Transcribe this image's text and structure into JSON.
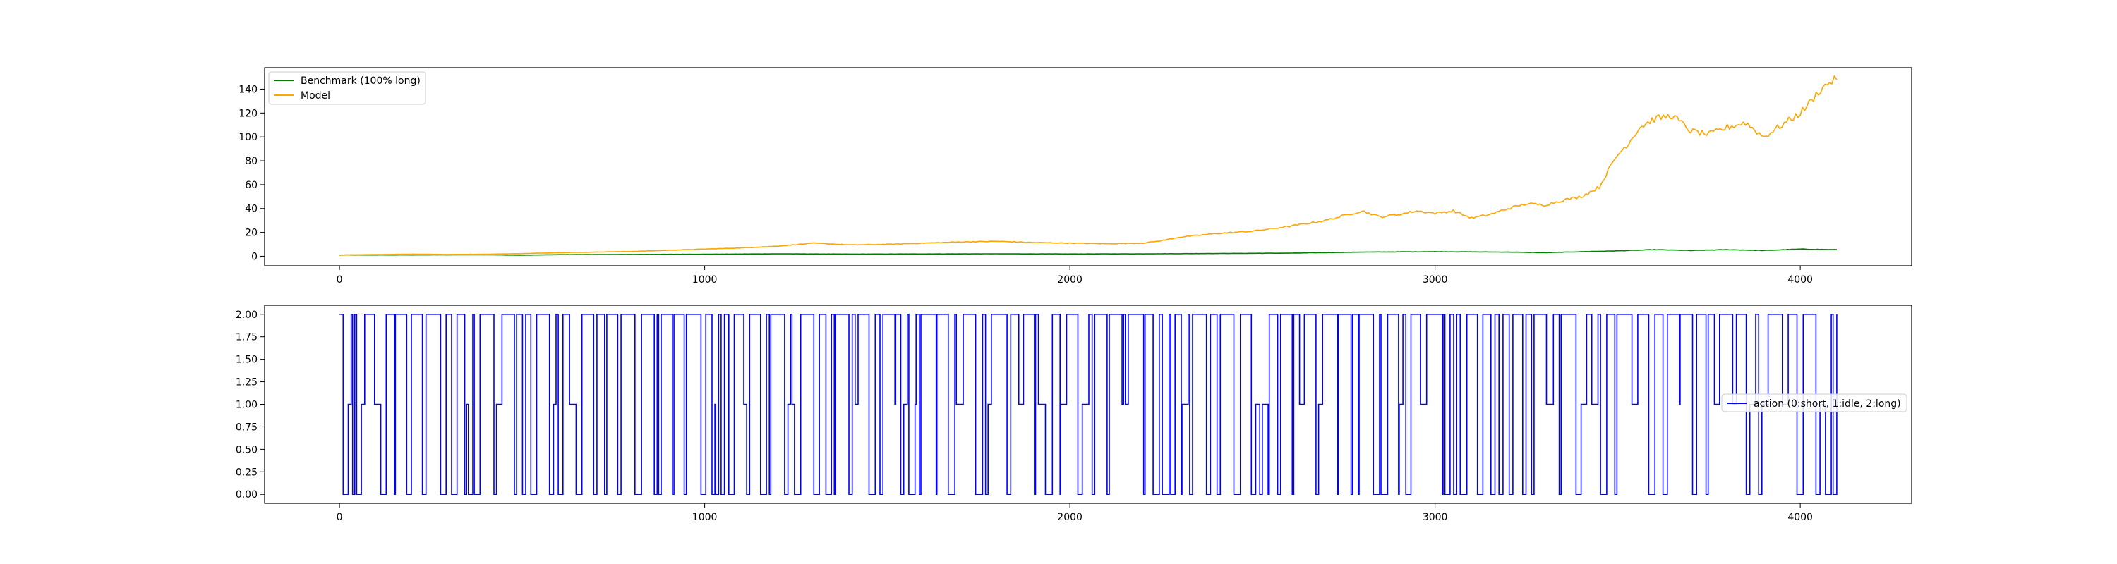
{
  "chart_data": [
    {
      "type": "line",
      "xlim": [
        -205,
        4305
      ],
      "ylim": [
        -8,
        158
      ],
      "xticks": [
        0,
        1000,
        2000,
        3000,
        4000
      ],
      "yticks": [
        0,
        20,
        40,
        60,
        80,
        100,
        120,
        140
      ],
      "legend_position": "top-left",
      "grid": false,
      "series": [
        {
          "name": "Benchmark (100% long)",
          "color": "#008000",
          "points": [
            [
              0,
              1.0
            ],
            [
              200,
              1.1
            ],
            [
              400,
              1.2
            ],
            [
              500,
              0.9
            ],
            [
              600,
              1.3
            ],
            [
              800,
              1.5
            ],
            [
              1000,
              1.7
            ],
            [
              1200,
              2.0
            ],
            [
              1400,
              1.8
            ],
            [
              1600,
              1.9
            ],
            [
              1800,
              2.0
            ],
            [
              2000,
              1.9
            ],
            [
              2200,
              2.0
            ],
            [
              2400,
              2.3
            ],
            [
              2600,
              2.6
            ],
            [
              2800,
              3.5
            ],
            [
              3000,
              3.8
            ],
            [
              3200,
              3.5
            ],
            [
              3300,
              3.0
            ],
            [
              3400,
              3.8
            ],
            [
              3500,
              4.5
            ],
            [
              3600,
              5.5
            ],
            [
              3700,
              4.8
            ],
            [
              3800,
              5.5
            ],
            [
              3900,
              4.8
            ],
            [
              4000,
              6.0
            ],
            [
              4100,
              5.5
            ]
          ]
        },
        {
          "name": "Model",
          "color": "#FFA500",
          "points": [
            [
              0,
              1.0
            ],
            [
              100,
              1.4
            ],
            [
              200,
              1.8
            ],
            [
              300,
              1.5
            ],
            [
              400,
              1.7
            ],
            [
              500,
              2.2
            ],
            [
              600,
              3.0
            ],
            [
              700,
              3.5
            ],
            [
              800,
              4.0
            ],
            [
              900,
              5.0
            ],
            [
              1000,
              6.0
            ],
            [
              1100,
              7.0
            ],
            [
              1200,
              8.5
            ],
            [
              1300,
              11.0
            ],
            [
              1400,
              9.5
            ],
            [
              1500,
              10.0
            ],
            [
              1600,
              11.0
            ],
            [
              1700,
              12.0
            ],
            [
              1800,
              12.5
            ],
            [
              1900,
              11.5
            ],
            [
              2000,
              11.0
            ],
            [
              2100,
              10.5
            ],
            [
              2200,
              11.0
            ],
            [
              2250,
              13.0
            ],
            [
              2300,
              16.0
            ],
            [
              2400,
              19.0
            ],
            [
              2500,
              21.0
            ],
            [
              2600,
              25.0
            ],
            [
              2700,
              30.0
            ],
            [
              2750,
              34.0
            ],
            [
              2800,
              38.0
            ],
            [
              2850,
              33.0
            ],
            [
              2900,
              35.0
            ],
            [
              2950,
              38.0
            ],
            [
              3000,
              36.0
            ],
            [
              3050,
              38.0
            ],
            [
              3100,
              32.0
            ],
            [
              3150,
              35.0
            ],
            [
              3200,
              40.0
            ],
            [
              3250,
              44.0
            ],
            [
              3300,
              43.0
            ],
            [
              3350,
              47.0
            ],
            [
              3400,
              50.0
            ],
            [
              3450,
              58.0
            ],
            [
              3480,
              75.0
            ],
            [
              3500,
              85.0
            ],
            [
              3530,
              95.0
            ],
            [
              3560,
              108.0
            ],
            [
              3600,
              115.0
            ],
            [
              3650,
              118.0
            ],
            [
              3700,
              105.0
            ],
            [
              3750,
              102.0
            ],
            [
              3800,
              108.0
            ],
            [
              3850,
              112.0
            ],
            [
              3900,
              100.0
            ],
            [
              3950,
              110.0
            ],
            [
              4000,
              120.0
            ],
            [
              4030,
              130.0
            ],
            [
              4050,
              138.0
            ],
            [
              4080,
              146.0
            ],
            [
              4100,
              148.0
            ]
          ]
        }
      ]
    },
    {
      "type": "line",
      "xlim": [
        -205,
        4305
      ],
      "ylim": [
        -0.1,
        2.1
      ],
      "xticks": [
        0,
        1000,
        2000,
        3000,
        4000
      ],
      "yticks": [
        0.0,
        0.25,
        0.5,
        0.75,
        1.0,
        1.25,
        1.5,
        1.75,
        2.0
      ],
      "legend_position": "center-right",
      "grid": false,
      "x_max": 4100,
      "series": [
        {
          "name": "action (0:short, 1:idle, 2:long)",
          "color": "#0000FF",
          "values": [
            2,
            0,
            2,
            0,
            2,
            1,
            2,
            0,
            2,
            2,
            0,
            1,
            2,
            0,
            2,
            2,
            0,
            2,
            0,
            2
          ]
        }
      ]
    }
  ],
  "tick_labels": {
    "top_y": [
      "0",
      "20",
      "40",
      "60",
      "80",
      "100",
      "120",
      "140"
    ],
    "top_x": [
      "0",
      "1000",
      "2000",
      "3000",
      "4000"
    ],
    "bottom_y": [
      "0.00",
      "0.25",
      "0.50",
      "0.75",
      "1.00",
      "1.25",
      "1.50",
      "1.75",
      "2.00"
    ],
    "bottom_x": [
      "0",
      "1000",
      "2000",
      "3000",
      "4000"
    ]
  },
  "legend_top": {
    "items": [
      "Benchmark (100% long)",
      "Model"
    ]
  },
  "legend_bottom": {
    "items": [
      "action (0:short, 1:idle, 2:long)"
    ]
  }
}
